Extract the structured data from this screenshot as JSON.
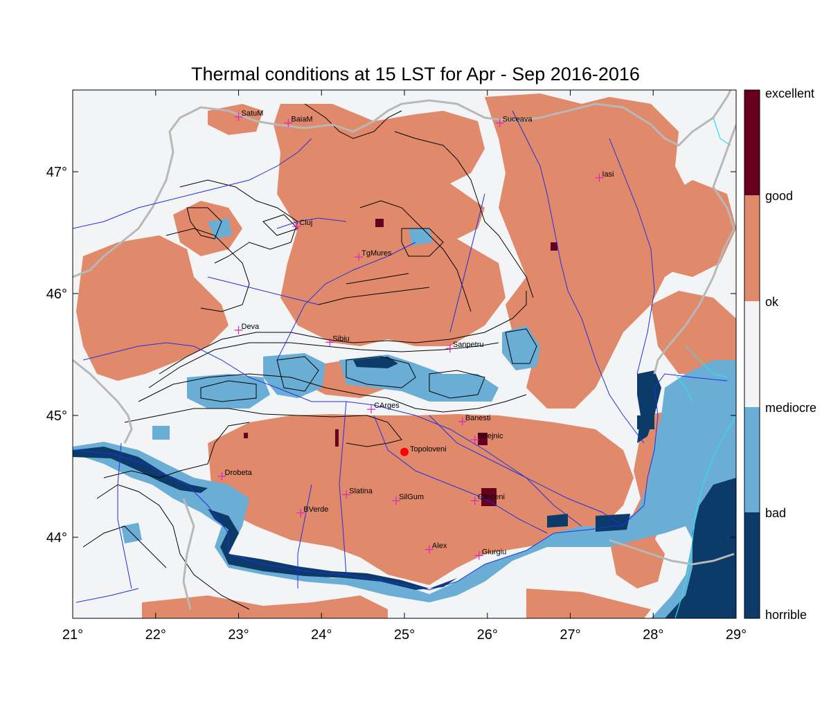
{
  "title": "Thermal conditions at 15 LST for Apr - Sep  2016-2016",
  "colors": {
    "excellent": "#67001f",
    "good": "#e08a6b",
    "ok": "#f2f4f6",
    "mediocre": "#6aaed6",
    "bad": "#0c3b6a",
    "river": "#2030e0",
    "border": "#b8b8b8",
    "contour": "#000000",
    "station": "#e020c0",
    "marker": "#ff0000",
    "lake": "#30e0e8"
  },
  "axes": {
    "x_ticks": [
      "21°",
      "22°",
      "23°",
      "24°",
      "25°",
      "26°",
      "27°",
      "28°",
      "29°"
    ],
    "y_ticks": [
      "44°",
      "45°",
      "46°",
      "47°"
    ]
  },
  "colorbar": {
    "labels": [
      "excellent",
      "good",
      "ok",
      "mediocre",
      "bad",
      "horrible"
    ]
  },
  "stations": [
    {
      "name": "SatuM",
      "lon": 23.0,
      "lat": 47.45
    },
    {
      "name": "BaiaM",
      "lon": 23.6,
      "lat": 47.4
    },
    {
      "name": "Suceava",
      "lon": 26.15,
      "lat": 47.4
    },
    {
      "name": "Iasi",
      "lon": 27.35,
      "lat": 46.95
    },
    {
      "name": "Cluj",
      "lon": 23.7,
      "lat": 46.55
    },
    {
      "name": "TgMures",
      "lon": 24.45,
      "lat": 46.3
    },
    {
      "name": "Deva",
      "lon": 23.0,
      "lat": 45.7
    },
    {
      "name": "Sibiu",
      "lon": 24.1,
      "lat": 45.6
    },
    {
      "name": "Sanpetru",
      "lon": 25.55,
      "lat": 45.55
    },
    {
      "name": "CArges",
      "lon": 24.6,
      "lat": 45.05
    },
    {
      "name": "Banesti",
      "lon": 25.7,
      "lat": 44.95
    },
    {
      "name": "Strejnic",
      "lon": 25.85,
      "lat": 44.8
    },
    {
      "name": "Drobeta",
      "lon": 22.8,
      "lat": 44.5
    },
    {
      "name": "BVerde",
      "lon": 23.75,
      "lat": 44.2
    },
    {
      "name": "Slatina",
      "lon": 24.3,
      "lat": 44.35
    },
    {
      "name": "SilGum",
      "lon": 24.9,
      "lat": 44.3
    },
    {
      "name": "Clinceni",
      "lon": 25.85,
      "lat": 44.3
    },
    {
      "name": "Alex",
      "lon": 25.3,
      "lat": 43.9
    },
    {
      "name": "Giurgiu",
      "lon": 25.9,
      "lat": 43.85
    }
  ],
  "marker": {
    "name": "Topoloveni",
    "lon": 25.0,
    "lat": 44.7
  }
}
